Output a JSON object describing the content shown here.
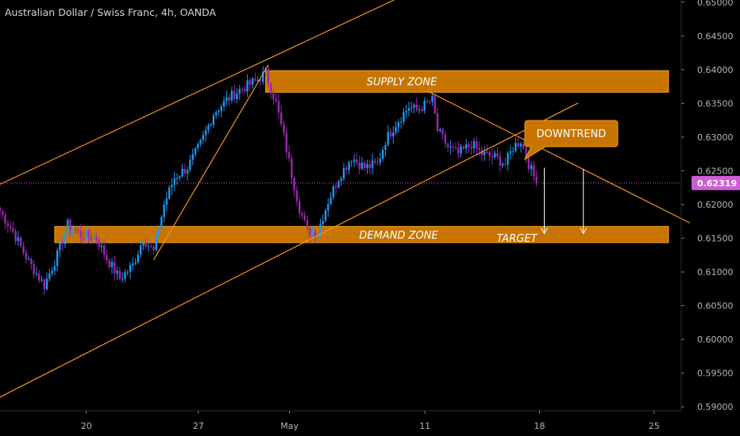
{
  "colors": {
    "background": "#000000",
    "bull": "#2196f3",
    "bear": "#9c27b0",
    "zone_fill": "#c77500",
    "zone_stroke": "#f7a21b",
    "trendline": "#f7931e",
    "price_line": "#d05cd6",
    "arrow": "#ffffff",
    "axis_text": "#b2b5be"
  },
  "chart_data": {
    "type": "candlestick",
    "title": "Australian Dollar / Swiss Franc, 4h, OANDA",
    "ylim": [
      0.5895,
      0.6505
    ],
    "y_ticks": [
      "0.59000",
      "0.59500",
      "0.60000",
      "0.60500",
      "0.61000",
      "0.61500",
      "0.62000",
      "0.62500",
      "0.63000",
      "0.63500",
      "0.64000",
      "0.64500",
      "0.65000"
    ],
    "x_ticks": [
      {
        "label": "20",
        "bar": 35
      },
      {
        "label": "27",
        "bar": 78
      },
      {
        "label": "May",
        "bar": 113
      },
      {
        "label": "11",
        "bar": 165
      },
      {
        "label": "18",
        "bar": 209
      },
      {
        "label": "25",
        "bar": 253
      }
    ],
    "bar_count": 280,
    "current_price": "0.62319",
    "current_price_value": 0.62319,
    "path": [
      [
        0,
        0.619
      ],
      [
        5,
        0.616
      ],
      [
        11,
        0.6115
      ],
      [
        17,
        0.608
      ],
      [
        22,
        0.6125
      ],
      [
        26,
        0.617
      ],
      [
        31,
        0.6155
      ],
      [
        37,
        0.615
      ],
      [
        41,
        0.612
      ],
      [
        46,
        0.609
      ],
      [
        51,
        0.611
      ],
      [
        55,
        0.615
      ],
      [
        59,
        0.613
      ],
      [
        63,
        0.62
      ],
      [
        67,
        0.624
      ],
      [
        72,
        0.6255
      ],
      [
        77,
        0.629
      ],
      [
        82,
        0.6335
      ],
      [
        87,
        0.6355
      ],
      [
        92,
        0.637
      ],
      [
        99,
        0.6385
      ],
      [
        102,
        0.6395
      ],
      [
        106,
        0.635
      ],
      [
        109,
        0.63
      ],
      [
        112,
        0.6245
      ],
      [
        115,
        0.6195
      ],
      [
        118,
        0.616
      ],
      [
        122,
        0.616
      ],
      [
        126,
        0.6205
      ],
      [
        130,
        0.624
      ],
      [
        135,
        0.627
      ],
      [
        140,
        0.6255
      ],
      [
        145,
        0.626
      ],
      [
        148,
        0.6295
      ],
      [
        152,
        0.632
      ],
      [
        157,
        0.6345
      ],
      [
        160,
        0.634
      ],
      [
        164,
        0.635
      ],
      [
        166,
        0.6355
      ],
      [
        168,
        0.631
      ],
      [
        172,
        0.6285
      ],
      [
        176,
        0.6275
      ],
      [
        181,
        0.629
      ],
      [
        185,
        0.6275
      ],
      [
        190,
        0.627
      ],
      [
        194,
        0.626
      ],
      [
        197,
        0.6285
      ],
      [
        200,
        0.6295
      ],
      [
        203,
        0.626
      ],
      [
        206,
        0.6232
      ]
    ],
    "annotations": {
      "supply_zone": {
        "label": "SUPPLY ZONE",
        "bar_from": 102,
        "bar_to": 280,
        "price_low": 0.63665,
        "price_high": 0.63985
      },
      "demand_zone": {
        "label": "DEMAND ZONE",
        "bar_from": 21,
        "bar_to": 280,
        "price_low": 0.61435,
        "price_high": 0.61675
      },
      "target_label": "TARGET",
      "downtrend_label": "DOWNTREND",
      "channel_upper": {
        "bar_from": 0,
        "price_from": 0.623,
        "bar_to": 152,
        "price_to": 0.65045
      },
      "channel_lower": {
        "bar_from": 0,
        "price_from": 0.59145,
        "bar_to": 222,
        "price_to": 0.63505
      },
      "rally_line": {
        "bar_from": 59,
        "price_from": 0.6118,
        "bar_to": 103,
        "price_to": 0.6407
      },
      "downtrend_line": {
        "bar_from": 164,
        "price_from": 0.63685,
        "bar_to": 265,
        "price_to": 0.61725
      },
      "arrows": [
        {
          "bar": 209,
          "price_from": 0.62545,
          "price_to": 0.6157
        },
        {
          "bar": 224,
          "price_from": 0.6253,
          "price_to": 0.6157
        }
      ]
    }
  }
}
